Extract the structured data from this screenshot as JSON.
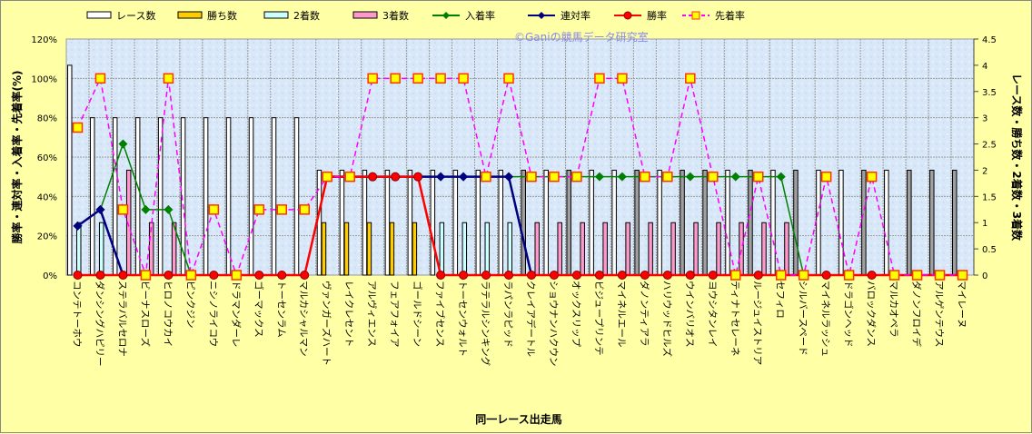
{
  "chart_data": {
    "type": "bar",
    "title": "",
    "watermark": "©Ganiの競馬データ研究室",
    "xlabel": "同一レース出走馬",
    "ylabel_left": "勝率・連対率・入着率・先着率(%)",
    "ylabel_right": "レース数・勝ち数・2着数・3着数",
    "ylim_left": [
      0,
      120
    ],
    "yticks_left": [
      "0%",
      "20%",
      "40%",
      "60%",
      "80%",
      "100%",
      "120%"
    ],
    "ylim_right": [
      0,
      4.5
    ],
    "yticks_right": [
      "0",
      "0.5",
      "1",
      "1.5",
      "2",
      "2.5",
      "3",
      "3.5",
      "4",
      "4.5"
    ],
    "grid": true,
    "legend_position": "top",
    "categories": [
      "コンテトーホウ",
      "ダンシングハピリー",
      "ステラバルセロナ",
      "ビーナスローズ",
      "ヒロノコウカイ",
      "ピンクジン",
      "ニシノライコウ",
      "ドラマンダーレ",
      "ゴーマックス",
      "トーセンラム",
      "マルカシャルマン",
      "ヴァンガーズハート",
      "レイクレセント",
      "アルヴィエンス",
      "フェアフォイア",
      "ゴールドシーン",
      "ファイブセンス",
      "トーセンウォルト",
      "ラテラルシンキング",
      "ラパンラピッド",
      "クレイアデートル",
      "ショウナンハクウン",
      "オックスリップ",
      "ビジュープリンテ",
      "マイネルエール",
      "ダノンティアラ",
      "ハリウッドヒルズ",
      "ウインバリオス",
      "ヨウシタンレイ",
      "ティナトセレーネ",
      "ルージュイストリア",
      "セフィロ",
      "シルバースペード",
      "マイネルラッシュ",
      "ドラゴンヘッド",
      "バロックダンス",
      "マルカオペラ",
      "ダノンフロイデ",
      "アルゲンテウス",
      "マイレーヌ"
    ],
    "bar_series": [
      {
        "name": "レース数",
        "axis": "right",
        "color": "#FFFFFF",
        "values": [
          4,
          3,
          3,
          3,
          3,
          3,
          3,
          3,
          3,
          3,
          3,
          2,
          2,
          2,
          2,
          2,
          2,
          2,
          2,
          2,
          2,
          2,
          2,
          2,
          2,
          2,
          2,
          2,
          2,
          2,
          2,
          2,
          2,
          2,
          2,
          2,
          2,
          2,
          2,
          2
        ]
      },
      {
        "name": "勝ち数",
        "axis": "right",
        "color": "#FFCC00",
        "values": [
          0,
          0,
          0,
          0,
          0,
          0,
          0,
          0,
          0,
          0,
          0,
          1,
          1,
          1,
          1,
          1,
          0,
          0,
          0,
          0,
          0,
          0,
          0,
          0,
          0,
          0,
          0,
          0,
          0,
          0,
          0,
          0,
          0,
          0,
          0,
          0,
          0,
          0,
          0,
          0
        ]
      },
      {
        "name": "2着数",
        "axis": "right",
        "color": "#CCFFFF",
        "values": [
          1,
          1,
          0,
          0,
          0,
          0,
          0,
          0,
          0,
          0,
          0,
          0,
          0,
          0,
          0,
          0,
          1,
          1,
          1,
          1,
          0,
          0,
          0,
          0,
          0,
          0,
          0,
          0,
          0,
          0,
          0,
          0,
          0,
          0,
          0,
          0,
          0,
          0,
          0,
          0
        ]
      },
      {
        "name": "3着数",
        "axis": "right",
        "color": "#FF99CC",
        "values": [
          0,
          0,
          2,
          1,
          1,
          0,
          0,
          0,
          0,
          0,
          0,
          0,
          0,
          0,
          0,
          0,
          0,
          0,
          0,
          0,
          1,
          1,
          1,
          1,
          1,
          1,
          1,
          1,
          1,
          1,
          1,
          1,
          0,
          0,
          0,
          0,
          0,
          0,
          0,
          0
        ]
      }
    ],
    "race_bar_shaded": [
      0,
      0,
      0,
      0,
      0,
      0,
      0,
      0,
      0,
      0,
      0,
      0,
      0,
      0,
      0,
      0,
      0,
      0,
      0,
      0,
      1,
      0,
      1,
      0,
      0,
      1,
      0,
      1,
      1,
      0,
      1,
      0,
      1,
      0,
      0,
      1,
      0,
      1,
      1,
      1
    ],
    "line_series": [
      {
        "name": "入着率",
        "axis": "left",
        "color": "#008000",
        "marker": "diamond",
        "dash": false,
        "values": [
          25,
          33.3,
          66.7,
          33.3,
          33.3,
          0,
          null,
          null,
          null,
          null,
          null,
          50,
          50,
          50,
          50,
          50,
          50,
          50,
          50,
          50,
          50,
          50,
          50,
          50,
          50,
          50,
          50,
          50,
          50,
          50,
          50,
          50,
          0,
          null,
          null,
          null,
          null,
          null,
          null,
          null
        ]
      },
      {
        "name": "連対率",
        "axis": "left",
        "color": "#000080",
        "marker": "diamond",
        "dash": false,
        "values": [
          25,
          33.3,
          0,
          null,
          null,
          null,
          null,
          null,
          null,
          null,
          null,
          50,
          50,
          50,
          50,
          50,
          50,
          50,
          50,
          50,
          0,
          null,
          null,
          null,
          null,
          null,
          null,
          null,
          null,
          null,
          null,
          null,
          null,
          null,
          null,
          null,
          null,
          null,
          null,
          null
        ]
      },
      {
        "name": "勝率",
        "axis": "left",
        "color": "#FF0000",
        "marker": "circle",
        "dash": false,
        "values": [
          0,
          0,
          0,
          0,
          0,
          0,
          0,
          0,
          0,
          0,
          0,
          50,
          50,
          50,
          50,
          50,
          0,
          0,
          0,
          0,
          0,
          0,
          0,
          0,
          0,
          0,
          0,
          0,
          0,
          0,
          0,
          0,
          0,
          0,
          0,
          0,
          0,
          0,
          0,
          0
        ]
      },
      {
        "name": "先着率",
        "axis": "left",
        "color": "#FF00FF",
        "marker": "square",
        "dash": true,
        "values": [
          75,
          100,
          33.3,
          0,
          100,
          0,
          33.3,
          0,
          33.3,
          33.3,
          33.3,
          50,
          50,
          100,
          100,
          100,
          100,
          100,
          50,
          100,
          50,
          50,
          50,
          100,
          100,
          50,
          50,
          100,
          50,
          0,
          50,
          0,
          0,
          50,
          0,
          50,
          0,
          0,
          0,
          0
        ]
      }
    ]
  }
}
